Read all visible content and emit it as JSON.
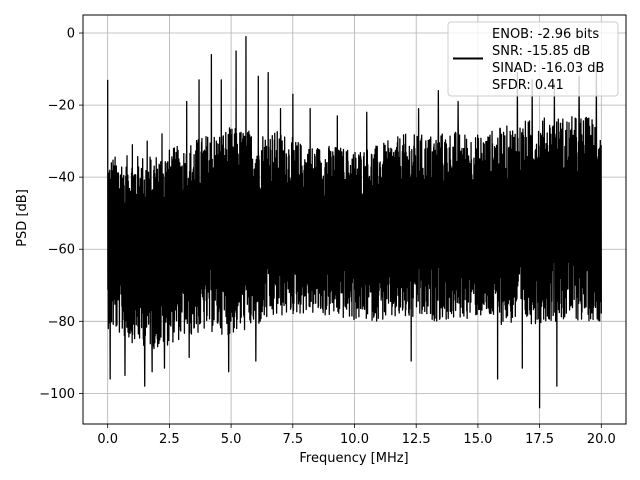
{
  "chart_data": {
    "type": "line",
    "title": "",
    "xlabel": "Frequency [MHz]",
    "ylabel": "PSD [dB]",
    "xlim": [
      -1,
      21
    ],
    "ylim": [
      -108.5,
      5
    ],
    "x_ticks": [
      0.0,
      2.5,
      5.0,
      7.5,
      10.0,
      12.5,
      15.0,
      17.5,
      20.0
    ],
    "x_tick_labels": [
      "0.0",
      "2.5",
      "5.0",
      "7.5",
      "10.0",
      "12.5",
      "15.0",
      "17.5",
      "20.0"
    ],
    "y_ticks": [
      0,
      -20,
      -40,
      -60,
      -80,
      -100
    ],
    "y_tick_labels": [
      "0",
      "−20",
      "−40",
      "−60",
      "−80",
      "−100"
    ],
    "grid": true,
    "legend_position": "top-right",
    "legend_lines": [
      "ENOB: -2.96 bits",
      "SNR: -15.85 dB",
      "SINAD: -16.03 dB",
      "SFDR: 0.41"
    ],
    "line_color": "#000000",
    "series": [
      {
        "x_range": [
          0,
          20
        ],
        "envelope": {
          "x": [
            0,
            1,
            2,
            3,
            4,
            5,
            6,
            7,
            8,
            9,
            10,
            11,
            12,
            13,
            14,
            15,
            16,
            17,
            18,
            19,
            20
          ],
          "upper_typical": [
            -34,
            -34,
            -33,
            -31,
            -28,
            -26,
            -27,
            -27,
            -31,
            -31,
            -32,
            -31,
            -28,
            -28,
            -27,
            -28,
            -26,
            -24,
            -23,
            -23,
            -23
          ],
          "lower_typical": [
            -82,
            -86,
            -88,
            -85,
            -83,
            -84,
            -82,
            -79,
            -78,
            -79,
            -80,
            -80,
            -80,
            -80,
            -80,
            -79,
            -81,
            -81,
            -80,
            -80,
            -80
          ]
        },
        "peaks": [
          {
            "x": 0.0,
            "y": -13
          },
          {
            "x": 1.0,
            "y": -31
          },
          {
            "x": 1.6,
            "y": -30
          },
          {
            "x": 2.2,
            "y": -28
          },
          {
            "x": 3.2,
            "y": -19
          },
          {
            "x": 3.7,
            "y": -13
          },
          {
            "x": 4.2,
            "y": -6
          },
          {
            "x": 4.6,
            "y": -13
          },
          {
            "x": 4.9,
            "y": -0.5
          },
          {
            "x": 5.2,
            "y": -5
          },
          {
            "x": 5.6,
            "y": -1
          },
          {
            "x": 6.1,
            "y": -12
          },
          {
            "x": 6.5,
            "y": -11
          },
          {
            "x": 7.0,
            "y": -21
          },
          {
            "x": 7.5,
            "y": -17
          },
          {
            "x": 8.2,
            "y": -21
          },
          {
            "x": 9.3,
            "y": -23
          },
          {
            "x": 10.5,
            "y": -22
          },
          {
            "x": 12.6,
            "y": -21
          },
          {
            "x": 13.4,
            "y": -16
          },
          {
            "x": 14.2,
            "y": -19
          },
          {
            "x": 16.6,
            "y": -11
          },
          {
            "x": 17.2,
            "y": -13
          },
          {
            "x": 18.1,
            "y": -14
          },
          {
            "x": 19.1,
            "y": -12
          },
          {
            "x": 19.8,
            "y": -9
          }
        ],
        "troughs": [
          {
            "x": 0.1,
            "y": -96
          },
          {
            "x": 0.7,
            "y": -95
          },
          {
            "x": 1.5,
            "y": -98
          },
          {
            "x": 1.8,
            "y": -94
          },
          {
            "x": 2.3,
            "y": -93
          },
          {
            "x": 3.3,
            "y": -90
          },
          {
            "x": 4.9,
            "y": -94
          },
          {
            "x": 6.0,
            "y": -91
          },
          {
            "x": 12.3,
            "y": -91
          },
          {
            "x": 15.8,
            "y": -96
          },
          {
            "x": 16.8,
            "y": -93
          },
          {
            "x": 17.5,
            "y": -104
          },
          {
            "x": 18.2,
            "y": -98
          }
        ]
      }
    ]
  }
}
